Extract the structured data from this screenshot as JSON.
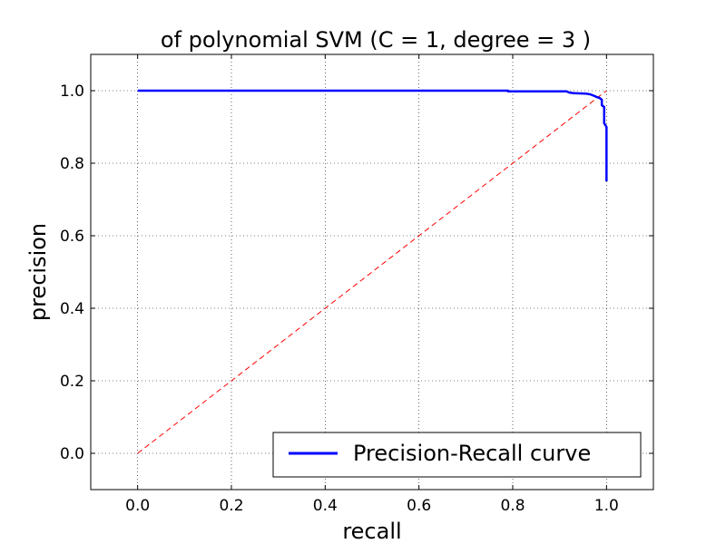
{
  "chart_data": {
    "type": "line",
    "title": "of polynomial SVM (C = 1, degree = 3 )",
    "xlabel": "recall",
    "ylabel": "precision",
    "xlim": [
      -0.1,
      1.1
    ],
    "ylim": [
      -0.1,
      1.1
    ],
    "xticks": [
      "0.0",
      "0.2",
      "0.4",
      "0.6",
      "0.8",
      "1.0"
    ],
    "yticks": [
      "0.0",
      "0.2",
      "0.4",
      "0.6",
      "0.8",
      "1.0"
    ],
    "grid": true,
    "legend_position": "lower-right",
    "series": [
      {
        "name": "Precision-Recall curve",
        "color": "#0000ff",
        "style": "solid",
        "x": [
          0.0,
          0.79,
          0.79,
          0.915,
          0.92,
          0.93,
          0.955,
          0.965,
          0.975,
          0.98,
          0.985,
          0.99,
          0.99,
          0.995,
          0.995,
          1.0,
          1.0
        ],
        "y": [
          1.0,
          1.0,
          0.998,
          0.998,
          0.995,
          0.993,
          0.992,
          0.99,
          0.985,
          0.982,
          0.98,
          0.975,
          0.96,
          0.955,
          0.91,
          0.9,
          0.75
        ]
      },
      {
        "color": "#ff0000",
        "style": "dashed",
        "x": [
          0.0,
          1.0
        ],
        "y": [
          0.0,
          1.0
        ]
      }
    ]
  }
}
